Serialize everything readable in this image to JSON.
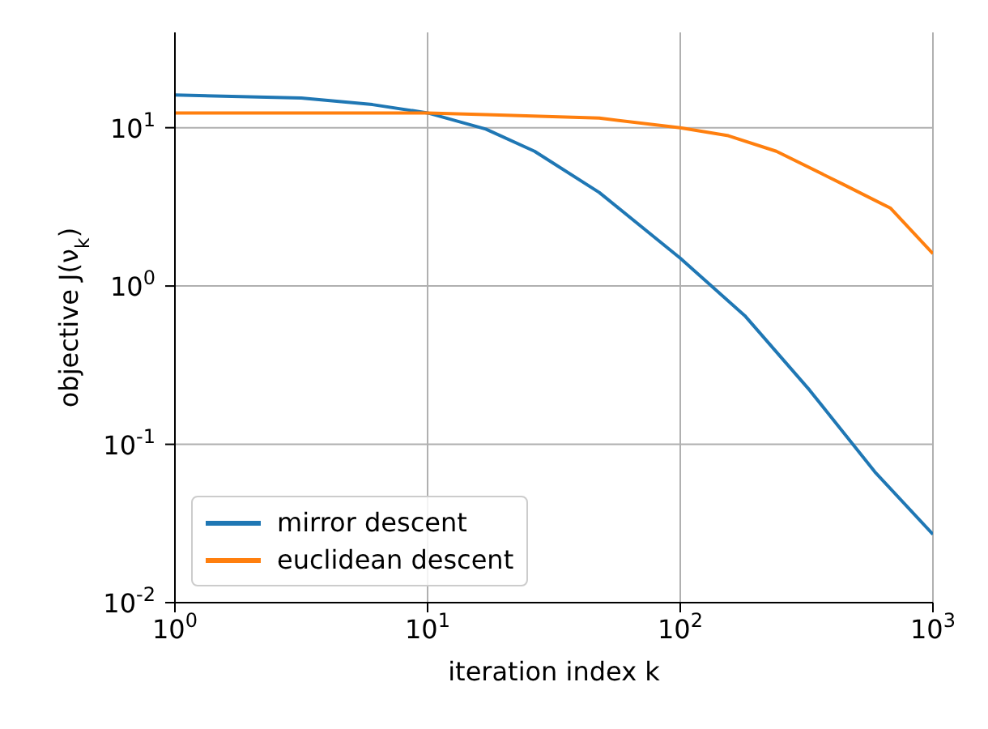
{
  "chart_data": {
    "type": "line",
    "xlabel": "iteration index k",
    "ylabel": "objective J(ν$_{k}$)",
    "log": "xy",
    "xlim": [
      1,
      1000
    ],
    "xticks": [
      {
        "value": 1,
        "label": "10$^{0}$"
      },
      {
        "value": 10,
        "label": "10$^{1}$"
      },
      {
        "value": 100,
        "label": "10$^{2}$"
      },
      {
        "value": 1000,
        "label": "10$^{3}$"
      }
    ],
    "ylim": [
      0.01,
      40
    ],
    "yticks": [
      {
        "value": 0.01,
        "label": "10$^{-2}$"
      },
      {
        "value": 0.1,
        "label": "10$^{-1}$"
      },
      {
        "value": 1,
        "label": "10$^{0}$"
      },
      {
        "value": 10,
        "label": "10$^{1}$"
      }
    ],
    "grid": true,
    "legend": "bottom left",
    "marker": "none",
    "line_style": "solid",
    "series": [
      {
        "name": "mirror descent",
        "color": "#1f77b4",
        "x": [
          1,
          3.16,
          6.05,
          10,
          17,
          26.5,
          47.8,
          100,
          180,
          325,
          589,
          1000
        ],
        "values": [
          16.1,
          15.4,
          14.0,
          12.4,
          9.8,
          7.1,
          3.9,
          1.5,
          0.65,
          0.22,
          0.067,
          0.027
        ]
      },
      {
        "name": "euclidean descent",
        "color": "#ff7f0e",
        "x": [
          1,
          10,
          17,
          47.8,
          100,
          155,
          240,
          440,
          680,
          1000
        ],
        "values": [
          12.4,
          12.4,
          12.1,
          11.5,
          10,
          8.9,
          7.1,
          4.4,
          3.1,
          1.6
        ]
      }
    ]
  }
}
